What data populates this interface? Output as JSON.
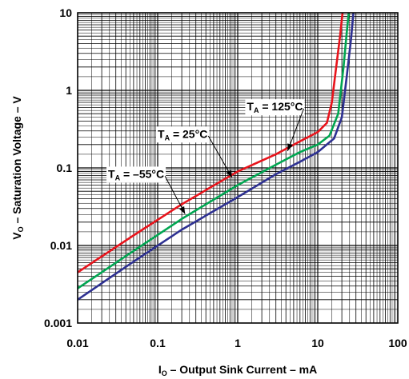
{
  "chart_data": {
    "type": "line",
    "title": "",
    "xlabel": {
      "main": "I",
      "sub": "O",
      "rest": " – Output Sink Current – mA"
    },
    "ylabel": {
      "main": "V",
      "sub": "O",
      "rest": " – Saturation Voltage – V"
    },
    "x_scale": "log",
    "y_scale": "log",
    "xlim": [
      0.01,
      100
    ],
    "ylim": [
      0.001,
      10
    ],
    "grid": true,
    "x_ticks": [
      {
        "value": 0.01,
        "label": "0.01"
      },
      {
        "value": 0.1,
        "label": "0.1"
      },
      {
        "value": 1,
        "label": "1"
      },
      {
        "value": 10,
        "label": "10"
      },
      {
        "value": 100,
        "label": "100"
      }
    ],
    "y_ticks": [
      {
        "value": 0.001,
        "label": "0.001"
      },
      {
        "value": 0.01,
        "label": "0.01"
      },
      {
        "value": 0.1,
        "label": "0.1"
      },
      {
        "value": 1,
        "label": "1"
      },
      {
        "value": 10,
        "label": "10"
      }
    ],
    "series": [
      {
        "name": "T_A = 125°C",
        "label_main": "T",
        "label_sub": "A",
        "label_rest": " = 125°C",
        "color": "#e8141c",
        "points": [
          [
            0.01,
            0.0045
          ],
          [
            0.05,
            0.0135
          ],
          [
            0.2,
            0.034
          ],
          [
            1,
            0.09
          ],
          [
            3,
            0.15
          ],
          [
            6,
            0.22
          ],
          [
            10,
            0.29
          ],
          [
            13,
            0.38
          ],
          [
            15,
            0.7
          ],
          [
            17,
            2.0
          ],
          [
            19,
            5.0
          ],
          [
            20.5,
            10.5
          ]
        ],
        "ann_x": 1.3,
        "ann_y": 0.55,
        "arrow_to": [
          4.2,
          0.165
        ]
      },
      {
        "name": "T_A = 25°C",
        "label_main": "T",
        "label_sub": "A",
        "label_rest": " = 25°C",
        "color": "#00a651",
        "points": [
          [
            0.01,
            0.0028
          ],
          [
            0.05,
            0.0085
          ],
          [
            0.2,
            0.022
          ],
          [
            1,
            0.06
          ],
          [
            3,
            0.11
          ],
          [
            6,
            0.16
          ],
          [
            10,
            0.2
          ],
          [
            14,
            0.26
          ],
          [
            18,
            0.5
          ],
          [
            21,
            2.0
          ],
          [
            23,
            5.5
          ],
          [
            24.5,
            10.5
          ]
        ],
        "ann_x": 0.1,
        "ann_y": 0.245,
        "arrow_to": [
          0.85,
          0.075
        ]
      },
      {
        "name": "T_A = –55°C",
        "label_main": "T",
        "label_sub": "A",
        "label_rest": " = –55°C",
        "color": "#2e3192",
        "points": [
          [
            0.01,
            0.002
          ],
          [
            0.05,
            0.0062
          ],
          [
            0.2,
            0.016
          ],
          [
            1,
            0.042
          ],
          [
            3,
            0.083
          ],
          [
            6,
            0.12
          ],
          [
            10,
            0.16
          ],
          [
            16,
            0.24
          ],
          [
            20,
            0.45
          ],
          [
            23,
            1.5
          ],
          [
            26,
            4.5
          ],
          [
            28,
            10.5
          ]
        ],
        "ann_x": 0.024,
        "ann_y": 0.0745,
        "arrow_to": [
          0.22,
          0.0255
        ]
      }
    ]
  }
}
